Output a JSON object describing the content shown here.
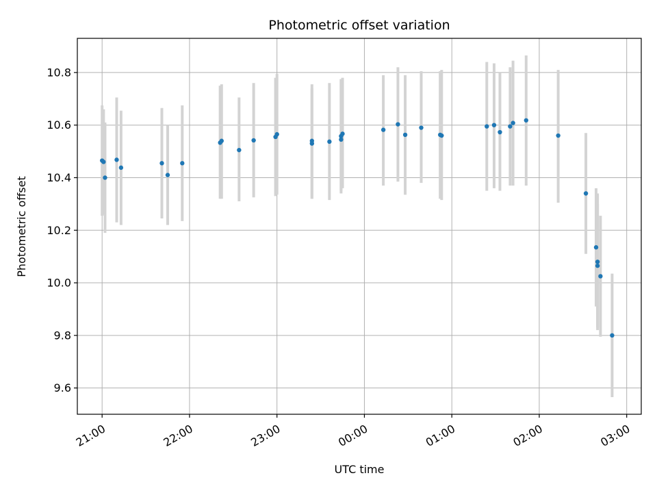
{
  "chart_data": {
    "type": "scatter",
    "title": "Photometric offset variation",
    "xlabel": "UTC time",
    "ylabel": "Photometric offset",
    "xlim": [
      "20:43",
      "03:10"
    ],
    "ylim": [
      9.5,
      10.93
    ],
    "x_ticks": [
      "21:00",
      "22:00",
      "23:00",
      "00:00",
      "01:00",
      "02:00",
      "03:00"
    ],
    "y_ticks": [
      "9.6",
      "9.8",
      "10.0",
      "10.2",
      "10.4",
      "10.6",
      "10.8"
    ],
    "grid": true,
    "colors": {
      "point": "#1f77b4",
      "errorbar": "#d3d3d3",
      "grid": "#b0b0b0"
    },
    "points": [
      {
        "t": "21:00",
        "y": 10.465,
        "lo": 10.255,
        "hi": 10.675
      },
      {
        "t": "21:01",
        "y": 10.46,
        "lo": 10.26,
        "hi": 10.66
      },
      {
        "t": "21:02",
        "y": 10.4,
        "lo": 10.19,
        "hi": 10.61
      },
      {
        "t": "21:10",
        "y": 10.468,
        "lo": 10.23,
        "hi": 10.705
      },
      {
        "t": "21:13",
        "y": 10.438,
        "lo": 10.22,
        "hi": 10.655
      },
      {
        "t": "21:41",
        "y": 10.455,
        "lo": 10.245,
        "hi": 10.665
      },
      {
        "t": "21:45",
        "y": 10.41,
        "lo": 10.22,
        "hi": 10.6
      },
      {
        "t": "21:55",
        "y": 10.455,
        "lo": 10.235,
        "hi": 10.675
      },
      {
        "t": "22:21",
        "y": 10.533,
        "lo": 10.32,
        "hi": 10.75
      },
      {
        "t": "22:22",
        "y": 10.54,
        "lo": 10.32,
        "hi": 10.755
      },
      {
        "t": "22:34",
        "y": 10.505,
        "lo": 10.31,
        "hi": 10.705
      },
      {
        "t": "22:44",
        "y": 10.542,
        "lo": 10.325,
        "hi": 10.76
      },
      {
        "t": "22:59",
        "y": 10.555,
        "lo": 10.33,
        "hi": 10.78
      },
      {
        "t": "23:00",
        "y": 10.565,
        "lo": 10.335,
        "hi": 10.795
      },
      {
        "t": "23:24",
        "y": 10.54,
        "lo": 10.32,
        "hi": 10.755
      },
      {
        "t": "23:24",
        "y": 10.53,
        "lo": 10.32,
        "hi": 10.74
      },
      {
        "t": "23:36",
        "y": 10.537,
        "lo": 10.315,
        "hi": 10.76
      },
      {
        "t": "23:44",
        "y": 10.545,
        "lo": 10.34,
        "hi": 10.775
      },
      {
        "t": "23:44",
        "y": 10.558,
        "lo": 10.35,
        "hi": 10.775
      },
      {
        "t": "23:45",
        "y": 10.567,
        "lo": 10.36,
        "hi": 10.78
      },
      {
        "t": "00:13",
        "y": 10.582,
        "lo": 10.37,
        "hi": 10.79
      },
      {
        "t": "00:23",
        "y": 10.603,
        "lo": 10.385,
        "hi": 10.82
      },
      {
        "t": "00:28",
        "y": 10.563,
        "lo": 10.335,
        "hi": 10.79
      },
      {
        "t": "00:39",
        "y": 10.59,
        "lo": 10.38,
        "hi": 10.805
      },
      {
        "t": "00:52",
        "y": 10.563,
        "lo": 10.32,
        "hi": 10.805
      },
      {
        "t": "00:53",
        "y": 10.56,
        "lo": 10.315,
        "hi": 10.81
      },
      {
        "t": "01:24",
        "y": 10.595,
        "lo": 10.35,
        "hi": 10.84
      },
      {
        "t": "01:29",
        "y": 10.6,
        "lo": 10.36,
        "hi": 10.835
      },
      {
        "t": "01:33",
        "y": 10.573,
        "lo": 10.35,
        "hi": 10.8
      },
      {
        "t": "01:40",
        "y": 10.595,
        "lo": 10.37,
        "hi": 10.82
      },
      {
        "t": "01:42",
        "y": 10.608,
        "lo": 10.37,
        "hi": 10.845
      },
      {
        "t": "01:51",
        "y": 10.618,
        "lo": 10.37,
        "hi": 10.865
      },
      {
        "t": "02:13",
        "y": 10.56,
        "lo": 10.305,
        "hi": 10.81
      },
      {
        "t": "02:32",
        "y": 10.34,
        "lo": 10.11,
        "hi": 10.57
      },
      {
        "t": "02:39",
        "y": 10.135,
        "lo": 9.91,
        "hi": 10.36
      },
      {
        "t": "02:40",
        "y": 10.08,
        "lo": 9.82,
        "hi": 10.34
      },
      {
        "t": "02:40",
        "y": 10.065,
        "lo": 9.83,
        "hi": 10.3
      },
      {
        "t": "02:42",
        "y": 10.025,
        "lo": 9.795,
        "hi": 10.255
      },
      {
        "t": "02:50",
        "y": 9.8,
        "lo": 9.565,
        "hi": 10.035
      }
    ]
  }
}
